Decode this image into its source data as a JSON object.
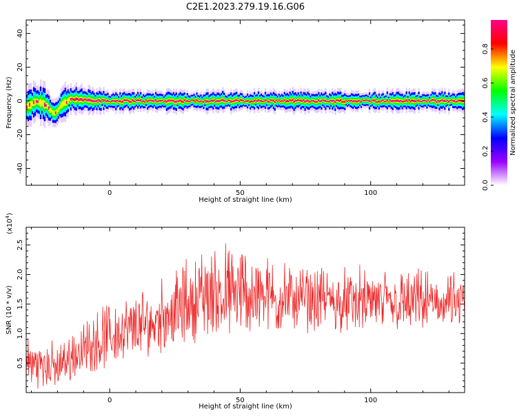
{
  "title": "C2E1.2023.279.19.16.G06",
  "chart_data": [
    {
      "type": "heatmap",
      "xlabel": "Height of straight line (km)",
      "ylabel": "Frequency (Hz)",
      "xlim": [
        -32,
        136
      ],
      "ylim": [
        -50,
        48
      ],
      "xticks": [
        0,
        50,
        100
      ],
      "yticks": [
        -40,
        -20,
        0,
        20,
        40
      ],
      "colorbar": {
        "label": "Normalized spectral amplitude",
        "range": [
          0,
          0.97
        ],
        "ticks": [
          0.0,
          0.2,
          0.4,
          0.6,
          0.8
        ],
        "colormap": [
          "#ffffff",
          "#9900ff",
          "#0000ff",
          "#00ffff",
          "#00ff00",
          "#ffff00",
          "#ff0000",
          "#ff0088"
        ]
      },
      "ridge": {
        "description_points": [
          {
            "x": -32,
            "y_center": -4,
            "halfwidth": 6
          },
          {
            "x": -28,
            "y_center": 0,
            "halfwidth": 5
          },
          {
            "x": -24,
            "y_center": -3,
            "halfwidth": 6
          },
          {
            "x": -21,
            "y_center": -8,
            "halfwidth": 4
          },
          {
            "x": -18,
            "y_center": -2,
            "halfwidth": 5
          },
          {
            "x": -15,
            "y_center": 1,
            "halfwidth": 4
          },
          {
            "x": 0,
            "y_center": 0,
            "halfwidth": 3
          },
          {
            "x": 50,
            "y_center": 0,
            "halfwidth": 3
          },
          {
            "x": 100,
            "y_center": 0,
            "halfwidth": 3
          },
          {
            "x": 136,
            "y_center": 0,
            "halfwidth": 3
          }
        ]
      }
    },
    {
      "type": "line",
      "xlabel": "Height of straight line (km)",
      "ylabel": "SNR (10 * v/v)",
      "yscale_label": "(x10",
      "yscale_exp": "4",
      "yscale_close": ")",
      "xlim": [
        -32,
        136
      ],
      "ylim": [
        0.0,
        2.8
      ],
      "xticks": [
        0,
        50,
        100
      ],
      "yticks": [
        0.5,
        1.0,
        1.5,
        2.0,
        2.5
      ],
      "color": "#ee2222",
      "envelope": [
        {
          "x": -32,
          "low": 0.05,
          "high": 1.1
        },
        {
          "x": -20,
          "low": 0.05,
          "high": 0.9
        },
        {
          "x": -10,
          "low": 0.3,
          "high": 1.3
        },
        {
          "x": 0,
          "low": 0.4,
          "high": 1.7
        },
        {
          "x": 15,
          "low": 0.6,
          "high": 1.9
        },
        {
          "x": 30,
          "low": 0.8,
          "high": 2.4
        },
        {
          "x": 40,
          "low": 0.9,
          "high": 2.7
        },
        {
          "x": 55,
          "low": 0.9,
          "high": 2.6
        },
        {
          "x": 70,
          "low": 1.0,
          "high": 2.3
        },
        {
          "x": 90,
          "low": 1.0,
          "high": 2.2
        },
        {
          "x": 110,
          "low": 1.0,
          "high": 2.2
        },
        {
          "x": 136,
          "low": 1.0,
          "high": 2.1
        }
      ]
    }
  ]
}
